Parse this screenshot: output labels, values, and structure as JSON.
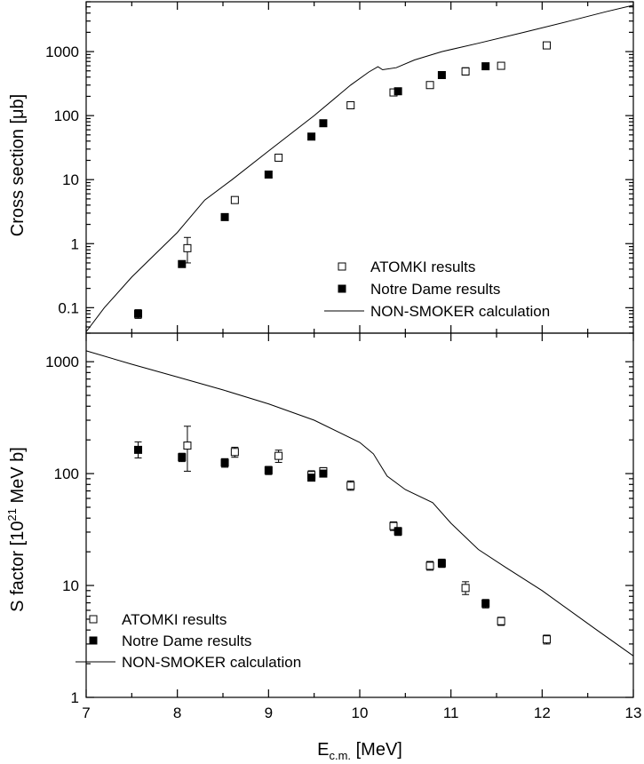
{
  "chart_data": [
    {
      "type": "scatter",
      "panel": "top",
      "title": "",
      "ylabel": "Cross section [μb]",
      "xlabel": "",
      "xlim": [
        7,
        13
      ],
      "ylim": [
        0.04,
        6000
      ],
      "yscale": "log",
      "grid": false,
      "legend_position": "bottom-right",
      "yticks": [
        {
          "v": 0.1,
          "label": "0.1"
        },
        {
          "v": 1,
          "label": "1"
        },
        {
          "v": 10,
          "label": "10"
        },
        {
          "v": 100,
          "label": "100"
        },
        {
          "v": 1000,
          "label": "1000"
        }
      ],
      "series": [
        {
          "name": "ATOMKI results",
          "style": "open-square",
          "points": [
            {
              "x": 8.11,
              "y": 0.85,
              "lo": 0.5,
              "hi": 1.25
            },
            {
              "x": 8.63,
              "y": 4.8
            },
            {
              "x": 9.11,
              "y": 22
            },
            {
              "x": 9.9,
              "y": 145
            },
            {
              "x": 10.37,
              "y": 230
            },
            {
              "x": 10.77,
              "y": 300
            },
            {
              "x": 11.16,
              "y": 490,
              "lo": 430,
              "hi": 560
            },
            {
              "x": 11.55,
              "y": 600
            },
            {
              "x": 12.05,
              "y": 1250
            }
          ]
        },
        {
          "name": "Notre Dame results",
          "style": "filled-square",
          "points": [
            {
              "x": 7.57,
              "y": 0.08,
              "lo": 0.068,
              "hi": 0.093
            },
            {
              "x": 8.05,
              "y": 0.48
            },
            {
              "x": 8.52,
              "y": 2.6
            },
            {
              "x": 9.0,
              "y": 12
            },
            {
              "x": 9.47,
              "y": 47
            },
            {
              "x": 9.6,
              "y": 76,
              "lo": 68,
              "hi": 85
            },
            {
              "x": 10.42,
              "y": 240
            },
            {
              "x": 10.9,
              "y": 430
            },
            {
              "x": 11.38,
              "y": 590
            }
          ]
        },
        {
          "name": "NON-SMOKER calculation",
          "style": "line",
          "points": [
            {
              "x": 7.0,
              "y": 0.042
            },
            {
              "x": 7.2,
              "y": 0.1
            },
            {
              "x": 7.5,
              "y": 0.3
            },
            {
              "x": 8.0,
              "y": 1.5
            },
            {
              "x": 8.3,
              "y": 4.8
            },
            {
              "x": 8.6,
              "y": 10
            },
            {
              "x": 9.0,
              "y": 28
            },
            {
              "x": 9.5,
              "y": 100
            },
            {
              "x": 9.9,
              "y": 300
            },
            {
              "x": 10.1,
              "y": 480
            },
            {
              "x": 10.2,
              "y": 580
            },
            {
              "x": 10.25,
              "y": 520
            },
            {
              "x": 10.4,
              "y": 560
            },
            {
              "x": 10.6,
              "y": 740
            },
            {
              "x": 10.9,
              "y": 1000
            },
            {
              "x": 11.3,
              "y": 1350
            },
            {
              "x": 11.8,
              "y": 2000
            },
            {
              "x": 12.3,
              "y": 3000
            },
            {
              "x": 12.7,
              "y": 4200
            },
            {
              "x": 13.0,
              "y": 5300
            }
          ]
        }
      ]
    },
    {
      "type": "scatter",
      "panel": "bottom",
      "title": "",
      "ylabel": "S factor [10",
      "ylabel_sup": "21",
      "ylabel_end": " MeV b]",
      "xlabel": "E",
      "xlabel_sub": "c.m.",
      "xlabel_end": " [MeV]",
      "xlim": [
        7,
        13
      ],
      "ylim": [
        1,
        1800
      ],
      "yscale": "log",
      "grid": false,
      "legend_position": "bottom-left",
      "xticks": [
        {
          "v": 7,
          "label": "7"
        },
        {
          "v": 8,
          "label": "8"
        },
        {
          "v": 9,
          "label": "9"
        },
        {
          "v": 10,
          "label": "10"
        },
        {
          "v": 11,
          "label": "11"
        },
        {
          "v": 12,
          "label": "12"
        },
        {
          "v": 13,
          "label": "13"
        }
      ],
      "yticks": [
        {
          "v": 1,
          "label": "1"
        },
        {
          "v": 10,
          "label": "10"
        },
        {
          "v": 100,
          "label": "100"
        },
        {
          "v": 1000,
          "label": "1000"
        }
      ],
      "series": [
        {
          "name": "ATOMKI results",
          "style": "open-square",
          "points": [
            {
              "x": 8.11,
              "y": 178,
              "lo": 105,
              "hi": 265
            },
            {
              "x": 8.63,
              "y": 156,
              "lo": 140,
              "hi": 172
            },
            {
              "x": 9.11,
              "y": 144,
              "lo": 126,
              "hi": 162
            },
            {
              "x": 9.47,
              "y": 97,
              "lo": 88,
              "hi": 106
            },
            {
              "x": 9.6,
              "y": 105,
              "lo": 97,
              "hi": 113
            },
            {
              "x": 9.9,
              "y": 78,
              "lo": 71,
              "hi": 86
            },
            {
              "x": 10.37,
              "y": 34,
              "lo": 31,
              "hi": 37
            },
            {
              "x": 10.77,
              "y": 15,
              "lo": 13.7,
              "hi": 16.4
            },
            {
              "x": 11.16,
              "y": 9.5,
              "lo": 8.3,
              "hi": 10.8
            },
            {
              "x": 11.55,
              "y": 4.8,
              "lo": 4.4,
              "hi": 5.2
            },
            {
              "x": 12.05,
              "y": 3.3,
              "lo": 3.0,
              "hi": 3.6
            }
          ]
        },
        {
          "name": "Notre Dame results",
          "style": "filled-square",
          "points": [
            {
              "x": 7.57,
              "y": 163,
              "lo": 138,
              "hi": 192
            },
            {
              "x": 8.05,
              "y": 140,
              "lo": 128,
              "hi": 152
            },
            {
              "x": 8.52,
              "y": 125,
              "lo": 114,
              "hi": 136
            },
            {
              "x": 9.0,
              "y": 107,
              "lo": 98,
              "hi": 116
            },
            {
              "x": 9.47,
              "y": 92,
              "lo": 86,
              "hi": 98
            },
            {
              "x": 9.6,
              "y": 100
            },
            {
              "x": 10.42,
              "y": 30.5,
              "lo": 28,
              "hi": 33
            },
            {
              "x": 10.9,
              "y": 15.8,
              "lo": 14.5,
              "hi": 17.2
            },
            {
              "x": 11.38,
              "y": 6.9,
              "lo": 6.3,
              "hi": 7.5
            }
          ]
        },
        {
          "name": "NON-SMOKER calculation",
          "style": "line",
          "points": [
            {
              "x": 7.0,
              "y": 1250
            },
            {
              "x": 7.5,
              "y": 950
            },
            {
              "x": 8.0,
              "y": 730
            },
            {
              "x": 8.5,
              "y": 560
            },
            {
              "x": 9.0,
              "y": 420
            },
            {
              "x": 9.5,
              "y": 300
            },
            {
              "x": 10.0,
              "y": 190
            },
            {
              "x": 10.15,
              "y": 150
            },
            {
              "x": 10.3,
              "y": 95
            },
            {
              "x": 10.5,
              "y": 72
            },
            {
              "x": 10.8,
              "y": 55
            },
            {
              "x": 11.0,
              "y": 36
            },
            {
              "x": 11.3,
              "y": 21
            },
            {
              "x": 11.6,
              "y": 14.5
            },
            {
              "x": 12.0,
              "y": 9.0
            },
            {
              "x": 12.6,
              "y": 4.0
            },
            {
              "x": 13.0,
              "y": 2.35
            }
          ]
        }
      ]
    }
  ]
}
